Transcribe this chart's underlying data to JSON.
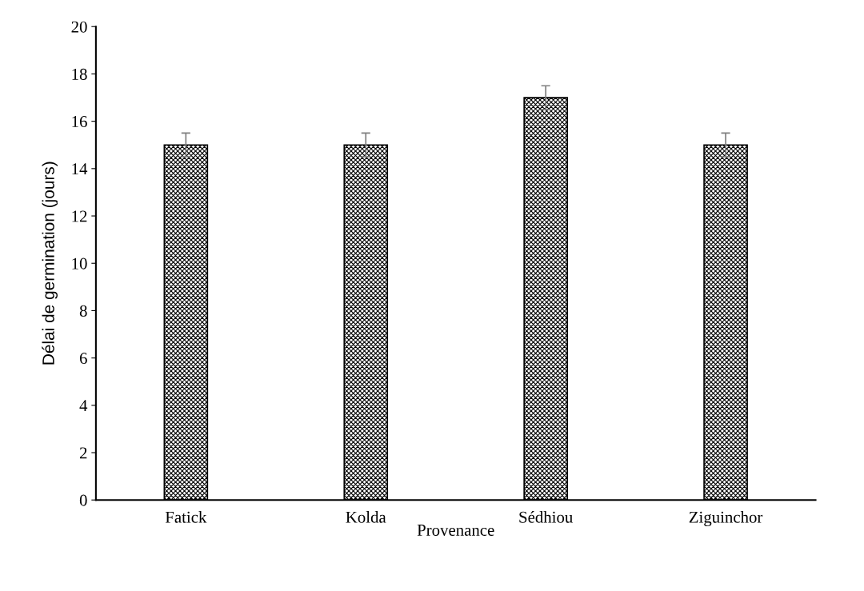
{
  "chart_data": {
    "type": "bar",
    "xlabel": "Provenance",
    "ylabel": "Délai de germination (jours)",
    "categories": [
      "Fatick",
      "Kolda",
      "Sédhiou",
      "Ziguinchor"
    ],
    "series": [
      {
        "color": "#000000",
        "values": [
          15,
          15,
          17,
          15
        ],
        "errors": [
          0.5,
          0.5,
          0.5,
          0.5
        ]
      }
    ],
    "ylim": [
      0,
      20
    ],
    "yticks": [
      0,
      2,
      4,
      6,
      8,
      10,
      12,
      14,
      16,
      18,
      20
    ]
  }
}
